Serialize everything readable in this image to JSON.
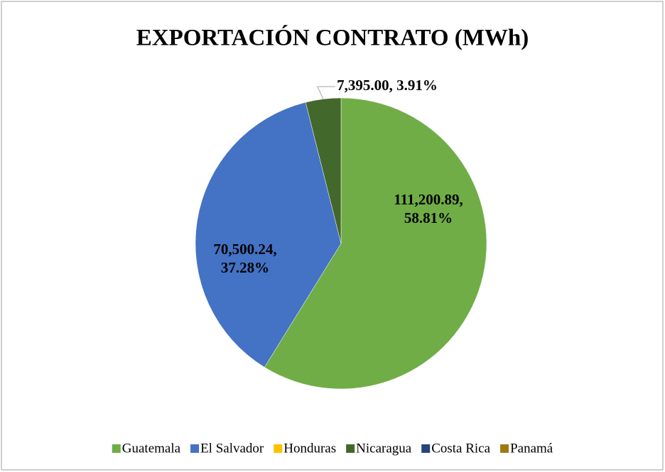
{
  "chart_data": {
    "type": "pie",
    "title": "EXPORTACIÓN CONTRATO (MWh)",
    "categories": [
      "Guatemala",
      "El Salvador",
      "Honduras",
      "Nicaragua",
      "Costa Rica",
      "Panamá"
    ],
    "values": [
      111200.89,
      70500.24,
      0,
      7395.0,
      0,
      0
    ],
    "value_labels": [
      "111,200.89, 58.81%",
      "70,500.24, 37.28%",
      null,
      "7,395.00, 3.91%",
      null,
      null
    ],
    "colors": [
      "#70ad47",
      "#4472c4",
      "#ffc000",
      "#43682b",
      "#264478",
      "#9e7b0f"
    ],
    "legend": "bottom"
  }
}
